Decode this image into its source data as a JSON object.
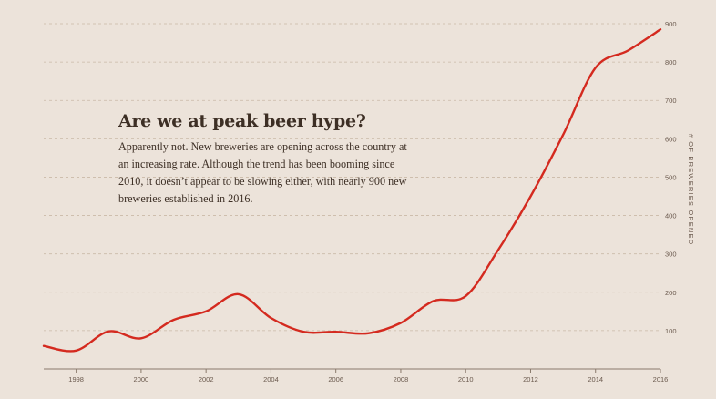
{
  "chart_data": {
    "type": "line",
    "title": "Are we at peak beer hype?",
    "subtitle": "Apparently not. New breweries are opening across the country at an increasing rate. Although the trend has been booming since 2010, it doesn’t appear to be slowing either, with nearly 900 new breweries established in 2016.",
    "ylabel": "# OF BREWERIES OPENED",
    "xlabel": "",
    "xlim": [
      1997,
      2016
    ],
    "ylim": [
      0,
      900
    ],
    "y_ticks": [
      100,
      200,
      300,
      400,
      500,
      600,
      700,
      800,
      900
    ],
    "x_ticks": [
      1998,
      2000,
      2002,
      2004,
      2006,
      2008,
      2010,
      2012,
      2014,
      2016
    ],
    "grid": "horizontal dashed",
    "line_color": "#d42a1f",
    "series": [
      {
        "x": [
          1997,
          1998,
          1999,
          2000,
          2001,
          2002,
          2003,
          2004,
          2005,
          2006,
          2007,
          2008,
          2009,
          2010,
          2011,
          2012,
          2013,
          2014,
          2015,
          2016
        ],
        "values": [
          60,
          48,
          98,
          80,
          128,
          150,
          195,
          133,
          97,
          97,
          93,
          120,
          177,
          190,
          310,
          450,
          610,
          785,
          830,
          885
        ]
      }
    ]
  }
}
